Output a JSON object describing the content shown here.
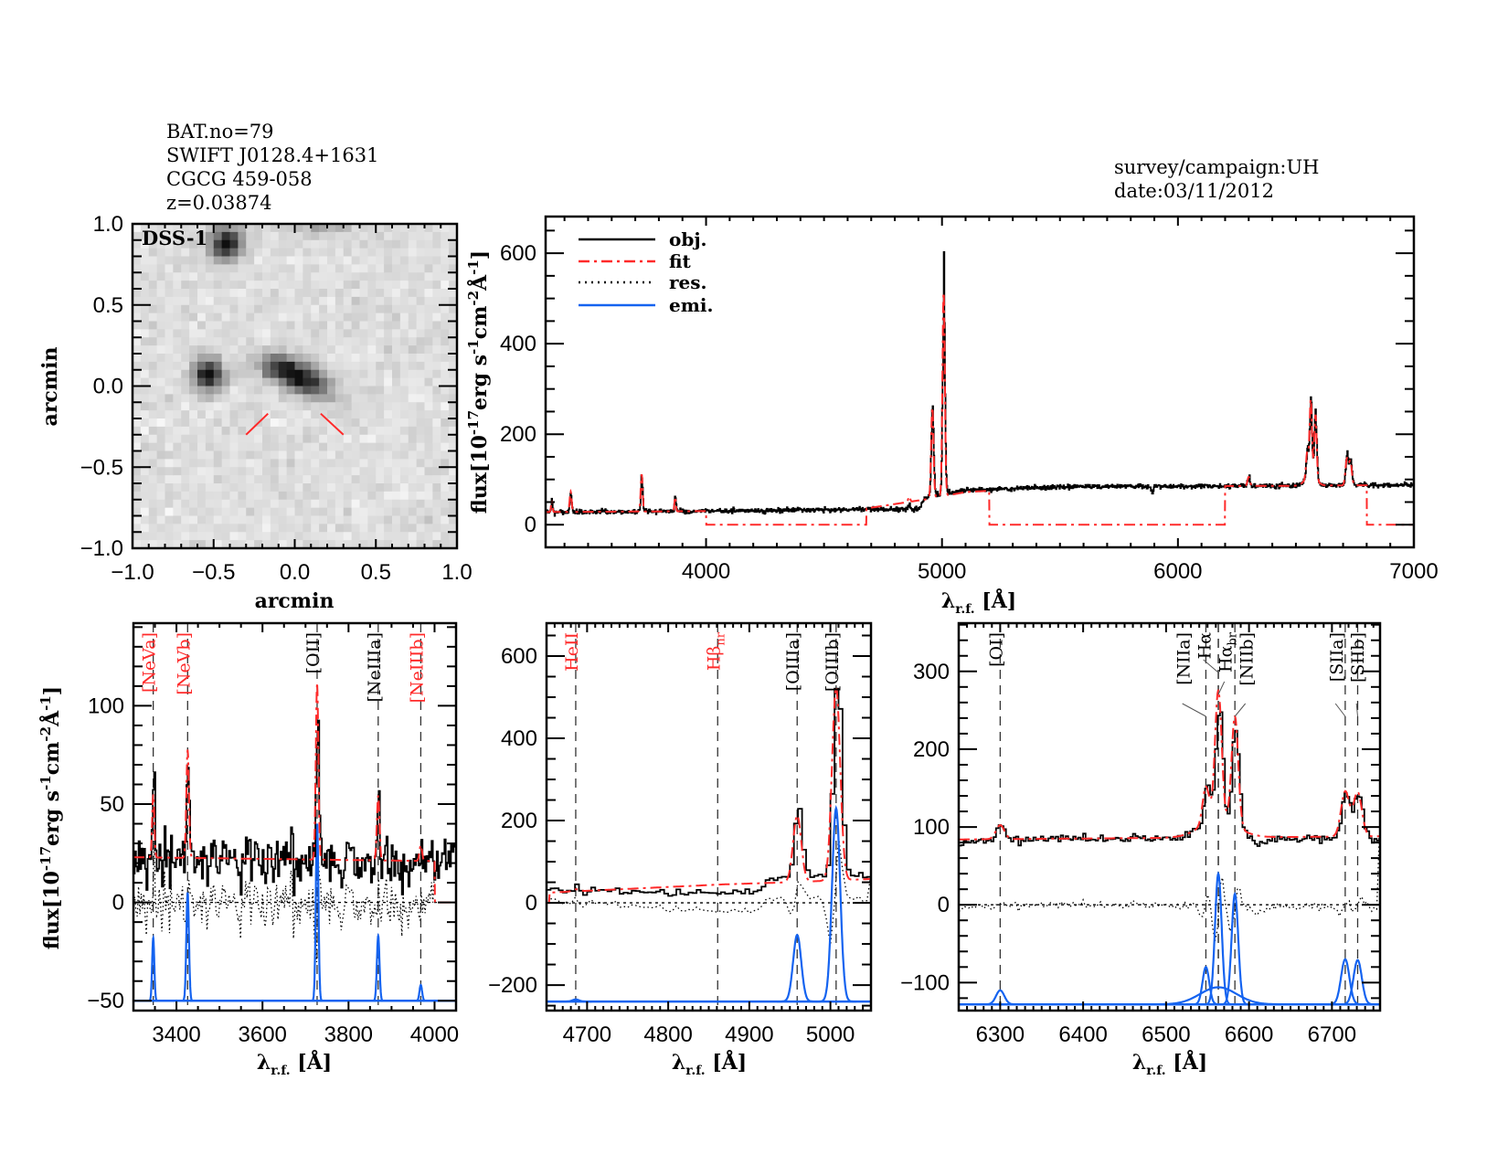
{
  "header": {
    "lines": [
      "BAT.no=79",
      "SWIFT J0128.4+1631",
      "CGCG 459-058",
      "z=0.03874"
    ],
    "survey": "survey/campaign:UH",
    "date": "date:03/11/2012"
  },
  "colors": {
    "obj": "#000000",
    "fit": "#ff2a2a",
    "res": "#000000",
    "emi": "#1463f0",
    "red_label": "#ff2a2a",
    "black_label": "#000000",
    "marker": "#ff2a2a"
  },
  "chart_data": [
    {
      "type": "image",
      "label": "DSS-1",
      "xlabel": "arcmin",
      "ylabel": "arcmin",
      "xlim": [
        -1,
        1
      ],
      "ylim": [
        -1,
        1
      ],
      "xticks": {
        "values": [
          -1,
          -0.5,
          0,
          0.5,
          1
        ],
        "labels": [
          "−1.0",
          "−0.5",
          "0.0",
          "0.5",
          "1.0"
        ]
      },
      "yticks": {
        "values": [
          -1,
          -0.5,
          0,
          0.5,
          1
        ],
        "labels": [
          "−1.0",
          "−0.5",
          "0.0",
          "0.5",
          "1.0"
        ]
      },
      "x_minor": 0.1,
      "y_minor": 0.1,
      "markers": [
        [
          [
            -0.3,
            -0.3
          ],
          [
            -0.165,
            -0.17
          ]
        ],
        [
          [
            0.16,
            -0.17
          ],
          [
            0.3,
            -0.3
          ]
        ]
      ]
    },
    {
      "type": "line",
      "id": "full",
      "xlim": [
        3320,
        7000
      ],
      "ylim": [
        -50,
        681
      ],
      "xticks": {
        "values": [
          4000,
          5000,
          6000,
          7000
        ],
        "labels": [
          "4000",
          "5000",
          "6000",
          "7000"
        ]
      },
      "yticks": {
        "values": [
          0,
          200,
          400,
          600
        ],
        "labels": [
          "0",
          "200",
          "400",
          "600"
        ]
      },
      "x_minor": 100,
      "y_minor": 50,
      "xlabel": {
        "main": "λ",
        "sub": "r.f.",
        "unit": " [Å]"
      },
      "ylabel": {
        "a": "flux[10",
        "b": "-17",
        "c": "erg s",
        "d": "-1",
        "e": "cm",
        "f": "-2",
        "g": "Å",
        "h": "-1",
        "i": "]"
      },
      "legend": {
        "position": "top-left",
        "entries": [
          "obj.",
          "fit",
          "res.",
          "emi."
        ]
      },
      "bin": 2.5,
      "noise": 2.5,
      "continuum": [
        [
          3320,
          28
        ],
        [
          3500,
          28
        ],
        [
          4000,
          30
        ],
        [
          4500,
          33
        ],
        [
          4900,
          34
        ],
        [
          4925,
          58
        ],
        [
          5100,
          76
        ],
        [
          5500,
          84
        ],
        [
          6000,
          85
        ],
        [
          6500,
          86
        ],
        [
          7000,
          88
        ]
      ],
      "fit_continuum": [
        [
          3320,
          28
        ],
        [
          4000,
          30
        ],
        [
          4680,
          36
        ],
        [
          4930,
          56
        ],
        [
          5100,
          72
        ],
        [
          5500,
          84
        ],
        [
          6500,
          86
        ],
        [
          7000,
          88
        ]
      ],
      "fit_ranges": [
        [
          3320,
          4000
        ],
        [
          4680,
          5200
        ],
        [
          6200,
          6800
        ]
      ],
      "components": [
        {
          "center": 3346,
          "amp": 25,
          "sigma": 3
        },
        {
          "center": 3426,
          "amp": 45,
          "sigma": 4
        },
        {
          "center": 3727,
          "amp": 82,
          "sigma": 4
        },
        {
          "center": 3869,
          "amp": 32,
          "sigma": 3
        },
        {
          "center": 4861,
          "amp": 12,
          "sigma": 4
        },
        {
          "center": 4959,
          "amp": 200,
          "sigma": 5
        },
        {
          "center": 5007,
          "amp": 450,
          "sigma": 5
        },
        {
          "center": 5890,
          "amp": -14,
          "sigma": 5
        },
        {
          "center": 6300,
          "amp": 20,
          "sigma": 5
        },
        {
          "center": 6548,
          "amp": 55,
          "sigma": 5
        },
        {
          "center": 6563,
          "amp": 165,
          "sigma": 5
        },
        {
          "center": 6563,
          "amp": 25,
          "sigma": 22
        },
        {
          "center": 6583,
          "amp": 140,
          "sigma": 5
        },
        {
          "center": 6716,
          "amp": 58,
          "sigma": 6
        },
        {
          "center": 6731,
          "amp": 52,
          "sigma": 6
        }
      ]
    },
    {
      "type": "line",
      "id": "blue",
      "xlim": [
        3300,
        4050
      ],
      "ylim": [
        -55,
        142
      ],
      "xticks": {
        "values": [
          3400,
          3600,
          3800,
          4000
        ],
        "labels": [
          "3400",
          "3600",
          "3800",
          "4000"
        ]
      },
      "yticks": {
        "values": [
          -50,
          0,
          50,
          100
        ],
        "labels": [
          "−50",
          "0",
          "50",
          "100"
        ]
      },
      "x_minor": 50,
      "y_minor": 10,
      "xlabel": {
        "main": "λ",
        "sub": "r.f.",
        "unit": " [Å]"
      },
      "ylabel": {
        "a": "flux[10",
        "b": "-17",
        "c": "erg s",
        "d": "-1",
        "e": "cm",
        "f": "-2",
        "g": "Å",
        "h": "-1",
        "i": "]"
      },
      "bin": 3,
      "noise": 7,
      "emi_baseline": -50,
      "continuum": [
        [
          3300,
          22
        ],
        [
          3600,
          22
        ],
        [
          3900,
          20
        ],
        [
          3950,
          18
        ],
        [
          4050,
          26
        ]
      ],
      "fit_continuum": [
        [
          3300,
          23
        ],
        [
          4000,
          21
        ]
      ],
      "fit_ranges": [
        [
          3300,
          4000
        ]
      ],
      "lines": [
        {
          "label": "[NeVa]",
          "sub": "",
          "center": 3346,
          "color": "red",
          "amp": 32,
          "sigma": 2.5
        },
        {
          "label": "[NeVb]",
          "sub": "",
          "center": 3426,
          "color": "red",
          "amp": 55,
          "sigma": 3
        },
        {
          "label": "[OII]",
          "sub": "",
          "center": 3727,
          "color": "black",
          "amp": 90,
          "sigma": 3
        },
        {
          "label": "[NeIIIa]",
          "sub": "",
          "center": 3869,
          "color": "black",
          "amp": 33,
          "sigma": 3
        },
        {
          "label": "[NeIIIb]",
          "sub": "",
          "center": 3968,
          "color": "red",
          "amp": 8,
          "sigma": 3
        }
      ]
    },
    {
      "type": "line",
      "id": "hbeta",
      "xlim": [
        4650,
        5050
      ],
      "ylim": [
        -262,
        680
      ],
      "xticks": {
        "values": [
          4700,
          4800,
          4900,
          5000
        ],
        "labels": [
          "4700",
          "4800",
          "4900",
          "5000"
        ]
      },
      "yticks": {
        "values": [
          -200,
          0,
          200,
          400,
          600
        ],
        "labels": [
          "−200",
          "0",
          "200",
          "400",
          "600"
        ]
      },
      "x_minor": 10,
      "y_minor": 50,
      "xlabel": {
        "main": "λ",
        "sub": "r.f.",
        "unit": " [Å]"
      },
      "bin": 5,
      "noise": 4,
      "emi_baseline": -240,
      "continuum": [
        [
          4650,
          30
        ],
        [
          4700,
          28
        ],
        [
          4800,
          24
        ],
        [
          4912,
          24
        ],
        [
          4916,
          55
        ],
        [
          4945,
          62
        ],
        [
          4985,
          65
        ],
        [
          5050,
          65
        ]
      ],
      "fit_continuum": [
        [
          4654,
          25
        ],
        [
          4870,
          45
        ],
        [
          4950,
          50
        ],
        [
          5050,
          58
        ]
      ],
      "fit_ranges": [
        [
          4654,
          5050
        ]
      ],
      "lines": [
        {
          "label": "HeII",
          "sub": "",
          "center": 4686,
          "color": "red",
          "amp": 5,
          "sigma": 4
        },
        {
          "label": "Hβ",
          "sub": "nr",
          "center": 4861,
          "color": "red",
          "amp": 0,
          "sigma": 4
        },
        {
          "label": "[OIIIa]",
          "sub": "",
          "center": 4959,
          "color": "black",
          "amp": 162,
          "sigma": 5
        },
        {
          "label": "[OIIIb]",
          "sub": "",
          "center": 5007,
          "color": "black",
          "amp": 470,
          "sigma": 5
        }
      ]
    },
    {
      "type": "line",
      "id": "halpha",
      "xlim": [
        6250,
        6758
      ],
      "ylim": [
        -136,
        362
      ],
      "xticks": {
        "values": [
          6300,
          6400,
          6500,
          6600,
          6700
        ],
        "labels": [
          "6300",
          "6400",
          "6500",
          "6600",
          "6700"
        ]
      },
      "yticks": {
        "values": [
          -100,
          0,
          100,
          200,
          300
        ],
        "labels": [
          "−100",
          "0",
          "100",
          "200",
          "300"
        ]
      },
      "x_minor": 10,
      "y_minor": 20,
      "xlabel": {
        "main": "λ",
        "sub": "r.f.",
        "unit": " [Å]"
      },
      "bin": 3,
      "noise": 2.5,
      "emi_baseline": -128,
      "continuum": [
        [
          6250,
          78
        ],
        [
          6300,
          84
        ],
        [
          6500,
          85
        ],
        [
          6540,
          88
        ],
        [
          6598,
          82
        ],
        [
          6610,
          74
        ],
        [
          6630,
          84
        ],
        [
          6760,
          86
        ]
      ],
      "fit_continuum": [
        [
          6250,
          84
        ],
        [
          6760,
          88
        ]
      ],
      "fit_ranges": [
        [
          6250,
          6758
        ]
      ],
      "lines": [
        {
          "label": "[OI]",
          "sub": "",
          "center": 6300,
          "color": "black",
          "amp": 18,
          "sigma": 5
        },
        {
          "label": "[NIIa]",
          "sub": "",
          "center": 6548,
          "color": "black",
          "amp": 48,
          "sigma": 4
        },
        {
          "label": "Hα",
          "sub": "",
          "center": 6563,
          "color": "black",
          "amp": 168,
          "sigma": 4
        },
        {
          "label": "Hα",
          "sub": "br",
          "center": 6563,
          "color": "black",
          "amp": 22,
          "sigma": 22
        },
        {
          "label": "[NIIb]",
          "sub": "",
          "center": 6583,
          "color": "black",
          "amp": 142,
          "sigma": 4
        },
        {
          "label": "[SIIa]",
          "sub": "",
          "center": 6716,
          "color": "black",
          "amp": 58,
          "sigma": 5
        },
        {
          "label": "[SIIb]",
          "sub": "",
          "center": 6731,
          "color": "black",
          "amp": 57,
          "sigma": 5
        }
      ]
    }
  ]
}
